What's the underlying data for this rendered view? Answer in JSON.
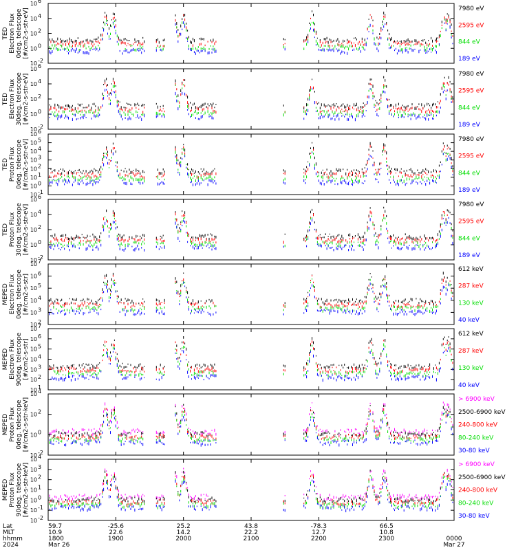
{
  "colors": {
    "blue": "#0000ff",
    "red": "#ff0000",
    "green": "#00dd00",
    "black": "#000000",
    "magenta": "#ff00ff"
  },
  "chart_data": [
    {
      "type": "scatter",
      "ylabel": [
        "TED",
        "Electron Flux",
        "0deg. telescope",
        "[#/cm2-s-str-eV]"
      ],
      "ytick_exponents": [
        -2,
        0,
        2,
        4,
        6
      ],
      "yscale": "log",
      "legend": [
        {
          "name": "7980 eV",
          "color": "black"
        },
        {
          "name": "2595 eV",
          "color": "red"
        },
        {
          "name": "844 eV",
          "color": "green"
        },
        {
          "name": "189 eV",
          "color": "blue"
        }
      ]
    },
    {
      "type": "scatter",
      "ylabel": [
        "TED",
        "Electron Flux",
        "30deg. telescope",
        "[#/cm2-s-str-eV]"
      ],
      "ytick_exponents": [
        -2,
        0,
        2,
        4,
        6
      ],
      "yscale": "log",
      "legend": [
        {
          "name": "7980 eV",
          "color": "black"
        },
        {
          "name": "2595 eV",
          "color": "red"
        },
        {
          "name": "844 eV",
          "color": "green"
        },
        {
          "name": "189 eV",
          "color": "blue"
        }
      ]
    },
    {
      "type": "scatter",
      "ylabel": [
        "TED",
        "Proton Flux",
        "0deg. telescope",
        "[#/cm2-s-str-eV]"
      ],
      "ytick_exponents": [
        -1,
        0,
        1,
        2,
        3,
        4,
        5,
        6
      ],
      "yscale": "log",
      "legend": [
        {
          "name": "7980 eV",
          "color": "black"
        },
        {
          "name": "2595 eV",
          "color": "red"
        },
        {
          "name": "844 eV",
          "color": "green"
        },
        {
          "name": "189 eV",
          "color": "blue"
        }
      ]
    },
    {
      "type": "scatter",
      "ylabel": [
        "TED",
        "Proton Flux",
        "30deg. telescope",
        "[#/cm2-s-str-eV]"
      ],
      "ytick_exponents": [
        -2,
        0,
        2,
        4,
        6
      ],
      "yscale": "log",
      "legend": [
        {
          "name": "7980 eV",
          "color": "black"
        },
        {
          "name": "2595 eV",
          "color": "red"
        },
        {
          "name": "844 eV",
          "color": "green"
        },
        {
          "name": "189 eV",
          "color": "blue"
        }
      ]
    },
    {
      "type": "scatter",
      "ylabel": [
        "MEPED",
        "Electron Flux",
        "0deg. telescope",
        "[#/cm2-s-str]"
      ],
      "ytick_exponents": [
        2,
        3,
        4,
        5,
        6,
        7
      ],
      "yscale": "log",
      "legend": [
        {
          "name": "612 keV",
          "color": "black"
        },
        {
          "name": "287 keV",
          "color": "red"
        },
        {
          "name": "130 keV",
          "color": "green"
        },
        {
          "name": "40 keV",
          "color": "blue"
        }
      ]
    },
    {
      "type": "scatter",
      "ylabel": [
        "MEPED",
        "Electron Flux",
        "90deg. telescope",
        "[#/cm2-s-str]"
      ],
      "ytick_exponents": [
        1,
        2,
        3,
        4,
        5,
        6,
        7
      ],
      "yscale": "log",
      "legend": [
        {
          "name": "612 keV",
          "color": "black"
        },
        {
          "name": "287 keV",
          "color": "red"
        },
        {
          "name": "130 keV",
          "color": "green"
        },
        {
          "name": "40 keV",
          "color": "blue"
        }
      ]
    },
    {
      "type": "scatter",
      "ylabel": [
        "MEPED",
        "Proton Flux",
        "0deg. telescope",
        "[#/cm2-s-str-keV]"
      ],
      "ytick_exponents": [
        -2,
        0,
        2,
        4
      ],
      "yscale": "log",
      "legend": [
        {
          "name": "> 6900 keV",
          "color": "magenta"
        },
        {
          "name": "2500-6900 keV",
          "color": "black"
        },
        {
          "name": "240-800 keV",
          "color": "red"
        },
        {
          "name": "80-240 keV",
          "color": "green"
        },
        {
          "name": "30-80 keV",
          "color": "blue"
        }
      ]
    },
    {
      "type": "scatter",
      "ylabel": [
        "MEPED",
        "Proton Flux",
        "90deg. telescope",
        "[#/cm2-s-str-keV]"
      ],
      "ytick_exponents": [
        -2,
        -1,
        0,
        1,
        2,
        3,
        4
      ],
      "yscale": "log",
      "legend": [
        {
          "name": "> 6900 keV",
          "color": "magenta"
        },
        {
          "name": "2500-6900 keV",
          "color": "black"
        },
        {
          "name": "240-800 keV",
          "color": "red"
        },
        {
          "name": "80-240 keV",
          "color": "green"
        },
        {
          "name": "30-80 keV",
          "color": "blue"
        }
      ]
    }
  ],
  "x_axis": {
    "row_labels": [
      "Lat",
      "MLT",
      "hhmm",
      "2024"
    ],
    "ticks": [
      {
        "t": 0,
        "lat": "59.7",
        "mlt": "10.9",
        "hhmm": "1800",
        "date": "Mar 26"
      },
      {
        "t": 60,
        "lat": "-25.6",
        "mlt": "22.6",
        "hhmm": "1900",
        "date": ""
      },
      {
        "t": 120,
        "lat": "25.2",
        "mlt": "14.2",
        "hhmm": "2000",
        "date": ""
      },
      {
        "t": 180,
        "lat": "43.8",
        "mlt": "22.2",
        "hhmm": "2100",
        "date": ""
      },
      {
        "t": 240,
        "lat": "-78.3",
        "mlt": "12.7",
        "hhmm": "2200",
        "date": ""
      },
      {
        "t": 300,
        "lat": "66.5",
        "mlt": "10.8",
        "hhmm": "2300",
        "date": ""
      },
      {
        "t": 360,
        "lat": "",
        "mlt": "",
        "hhmm": "0000",
        "date": "Mar 27"
      }
    ],
    "range_minutes": [
      0,
      360
    ]
  }
}
